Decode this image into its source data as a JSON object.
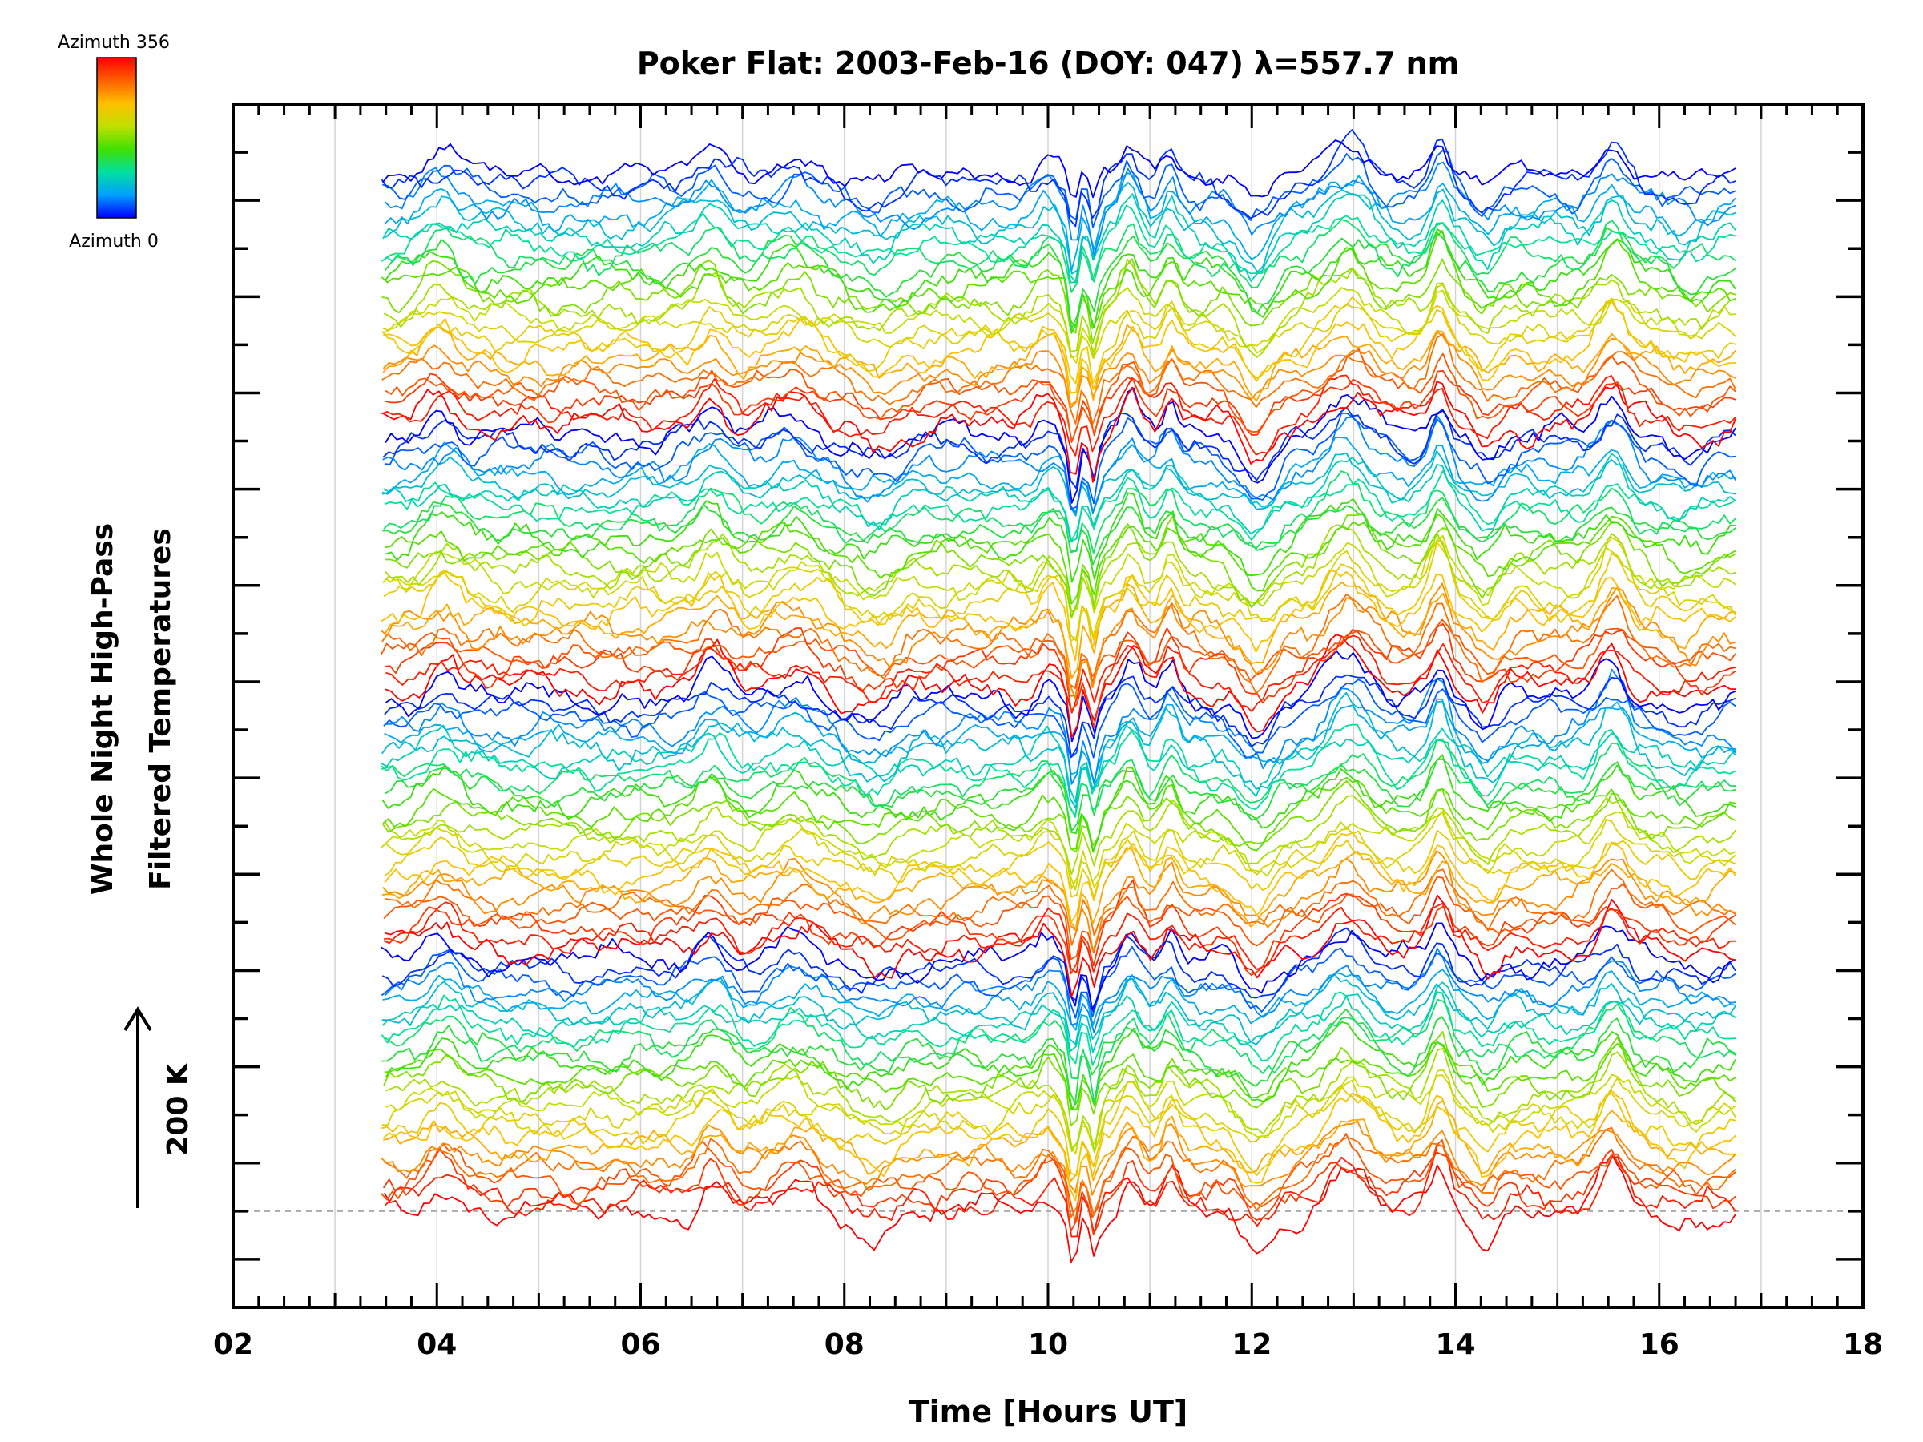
{
  "chart_data": {
    "type": "line",
    "title": "Poker Flat: 2003-Feb-16 (DOY: 047) λ=557.7 nm",
    "xlabel": "Time [Hours UT]",
    "ylabel_line1": "Whole Night High-Pass",
    "ylabel_line2": "Filtered Temperatures",
    "xlim": [
      2,
      18
    ],
    "x_tick_labels": [
      "02",
      "04",
      "06",
      "08",
      "10",
      "12",
      "14",
      "16",
      "18"
    ],
    "x_major_ticks": [
      2,
      4,
      6,
      8,
      10,
      12,
      14,
      16,
      18
    ],
    "x_minor_step": 0.25,
    "gridlines_x": [
      3,
      4,
      5,
      6,
      7,
      8,
      9,
      10,
      11,
      12,
      13,
      14,
      15,
      16,
      17
    ],
    "y_tick_count": 24,
    "baseline_dashed": true,
    "scale_bar": {
      "label": "200 K",
      "direction": "up"
    },
    "colorbar": {
      "top_label": "Azimuth 356",
      "bottom_label": "Azimuth 0",
      "colors": [
        "#0000ff",
        "#00a0ff",
        "#00e0a0",
        "#40e000",
        "#c0e000",
        "#ffc000",
        "#ff6000",
        "#ff0000"
      ]
    },
    "series_count": 100,
    "time_range": [
      3.45,
      16.75
    ],
    "common_features": [
      {
        "t": 4.05,
        "amp": 0.9,
        "w": 0.22
      },
      {
        "t": 6.7,
        "amp": 1.0,
        "w": 0.18
      },
      {
        "t": 7.5,
        "amp": 0.8,
        "w": 0.25
      },
      {
        "t": 8.3,
        "amp": -0.8,
        "w": 0.3
      },
      {
        "t": 10.0,
        "amp": 0.7,
        "w": 0.12
      },
      {
        "t": 10.25,
        "amp": -2.2,
        "w": 0.06
      },
      {
        "t": 10.45,
        "amp": -1.8,
        "w": 0.06
      },
      {
        "t": 10.8,
        "amp": 1.3,
        "w": 0.12
      },
      {
        "t": 11.2,
        "amp": 1.2,
        "w": 0.1
      },
      {
        "t": 12.05,
        "amp": -1.4,
        "w": 0.22
      },
      {
        "t": 12.95,
        "amp": 1.5,
        "w": 0.25
      },
      {
        "t": 13.85,
        "amp": 1.7,
        "w": 0.12
      },
      {
        "t": 14.3,
        "amp": -0.9,
        "w": 0.15
      },
      {
        "t": 15.55,
        "amp": 1.5,
        "w": 0.18
      },
      {
        "t": 16.3,
        "amp": -0.5,
        "w": 0.25
      }
    ]
  }
}
